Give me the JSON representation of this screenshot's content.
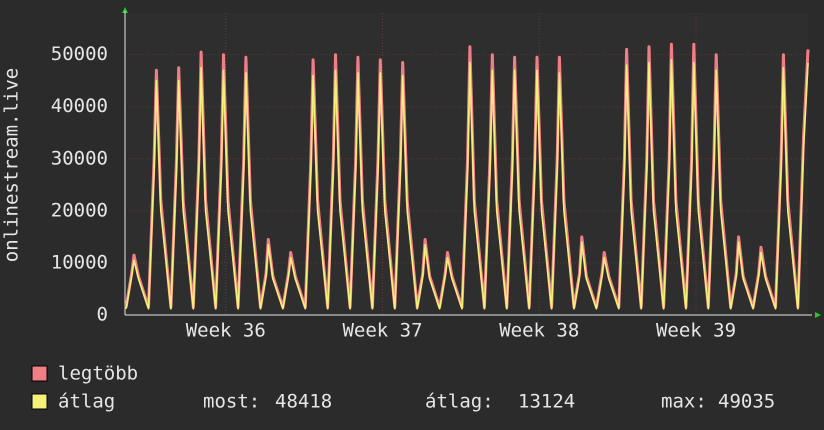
{
  "chart_data": {
    "type": "line",
    "ylabel": "onlinestream.live",
    "xlim": [
      0,
      30.5
    ],
    "xticks": [
      {
        "value": 4.5,
        "label": "Week 36"
      },
      {
        "value": 11.5,
        "label": "Week 37"
      },
      {
        "value": 18.5,
        "label": "Week 38"
      },
      {
        "value": 25.5,
        "label": "Week 39"
      }
    ],
    "ylim": [
      0,
      58000
    ],
    "yticks": [
      0,
      10000,
      20000,
      30000,
      40000,
      50000
    ],
    "grid": true,
    "x": [
      0.05,
      0.3,
      0.4,
      0.6,
      1.05,
      1.3,
      1.4,
      1.6,
      2.05,
      2.3,
      2.4,
      2.6,
      3.05,
      3.3,
      3.4,
      3.6,
      4.05,
      4.3,
      4.4,
      4.6,
      5.05,
      5.3,
      5.4,
      5.6,
      6.05,
      6.3,
      6.4,
      6.6,
      7.05,
      7.3,
      7.4,
      7.6,
      8.05,
      8.3,
      8.4,
      8.6,
      9.05,
      9.3,
      9.4,
      9.6,
      10.05,
      10.3,
      10.4,
      10.6,
      11.05,
      11.3,
      11.4,
      11.6,
      12.05,
      12.3,
      12.4,
      12.6,
      13.05,
      13.3,
      13.4,
      13.6,
      14.05,
      14.3,
      14.4,
      14.6,
      15.05,
      15.3,
      15.4,
      15.6,
      16.05,
      16.3,
      16.4,
      16.6,
      17.05,
      17.3,
      17.4,
      17.6,
      18.05,
      18.3,
      18.4,
      18.6,
      19.05,
      19.3,
      19.4,
      19.6,
      20.05,
      20.3,
      20.4,
      20.6,
      21.05,
      21.3,
      21.4,
      21.6,
      22.05,
      22.3,
      22.4,
      22.6,
      23.05,
      23.3,
      23.4,
      23.6,
      24.05,
      24.3,
      24.4,
      24.6,
      25.05,
      25.3,
      25.4,
      25.6,
      26.05,
      26.3,
      26.4,
      26.6,
      27.05,
      27.3,
      27.4,
      27.6,
      28.05,
      28.3,
      28.4,
      28.6,
      29.05,
      29.3,
      29.4,
      29.6,
      30.05,
      30.3,
      30.5
    ],
    "series": [
      {
        "name": "legtöbb",
        "color": "#f07f85",
        "values": [
          1500,
          8000,
          11500,
          7500,
          1500,
          30000,
          47000,
          22000,
          1500,
          30000,
          47500,
          22000,
          1500,
          30000,
          50500,
          22000,
          1500,
          30000,
          50000,
          22000,
          1500,
          30000,
          49500,
          22000,
          1500,
          8000,
          14500,
          7500,
          1500,
          8000,
          12000,
          7500,
          1500,
          30000,
          49000,
          22000,
          1500,
          30000,
          50000,
          22000,
          1500,
          30000,
          49500,
          22000,
          1500,
          30000,
          49000,
          22000,
          1500,
          30000,
          48500,
          22000,
          1500,
          8000,
          14500,
          7500,
          1500,
          8000,
          12000,
          7500,
          1500,
          30000,
          51500,
          22000,
          1500,
          30000,
          50000,
          22000,
          1500,
          30000,
          49500,
          22000,
          1500,
          30000,
          49500,
          22000,
          1500,
          30000,
          49500,
          22000,
          1500,
          8000,
          15000,
          7500,
          1500,
          8000,
          12000,
          7500,
          1500,
          30000,
          51000,
          22000,
          1500,
          30000,
          51500,
          22000,
          1500,
          30000,
          52000,
          22000,
          1500,
          30000,
          52000,
          22000,
          1500,
          30000,
          50000,
          22000,
          1500,
          8000,
          15000,
          7500,
          1500,
          8000,
          13000,
          7500,
          1500,
          30000,
          50000,
          22000,
          1500,
          34000,
          51000
        ]
      },
      {
        "name": "átlag",
        "color": "#f5f07a",
        "values": [
          1200,
          7500,
          10500,
          7000,
          1200,
          28000,
          45000,
          20000,
          1200,
          28000,
          45000,
          20000,
          1200,
          28000,
          47500,
          20000,
          1200,
          28000,
          47000,
          20000,
          1200,
          28000,
          46500,
          20000,
          1200,
          7500,
          13500,
          7000,
          1200,
          7500,
          11000,
          7000,
          1200,
          28000,
          46000,
          20000,
          1200,
          28000,
          47000,
          20000,
          1200,
          28000,
          46500,
          20000,
          1200,
          28000,
          46500,
          20000,
          1200,
          28000,
          46000,
          20000,
          1200,
          7500,
          13500,
          7000,
          1200,
          7500,
          11000,
          7000,
          1200,
          28000,
          48500,
          20000,
          1200,
          28000,
          47000,
          20000,
          1200,
          28000,
          47000,
          20000,
          1200,
          28000,
          47000,
          20000,
          1200,
          28000,
          46500,
          20000,
          1200,
          7500,
          14000,
          7000,
          1200,
          7500,
          11000,
          7000,
          1200,
          28000,
          48000,
          20000,
          1200,
          28000,
          48500,
          20000,
          1200,
          28000,
          49035,
          20000,
          1200,
          28000,
          48500,
          20000,
          1200,
          28000,
          47000,
          20000,
          1200,
          7500,
          14000,
          7000,
          1200,
          7500,
          12000,
          7000,
          1200,
          28000,
          47500,
          20000,
          1200,
          32000,
          48418
        ]
      }
    ],
    "legend_stats": [
      {
        "label": "most:",
        "value": 48418
      },
      {
        "label": "átlag:",
        "value": 13124
      },
      {
        "label": "max:",
        "value": 49035
      }
    ]
  }
}
